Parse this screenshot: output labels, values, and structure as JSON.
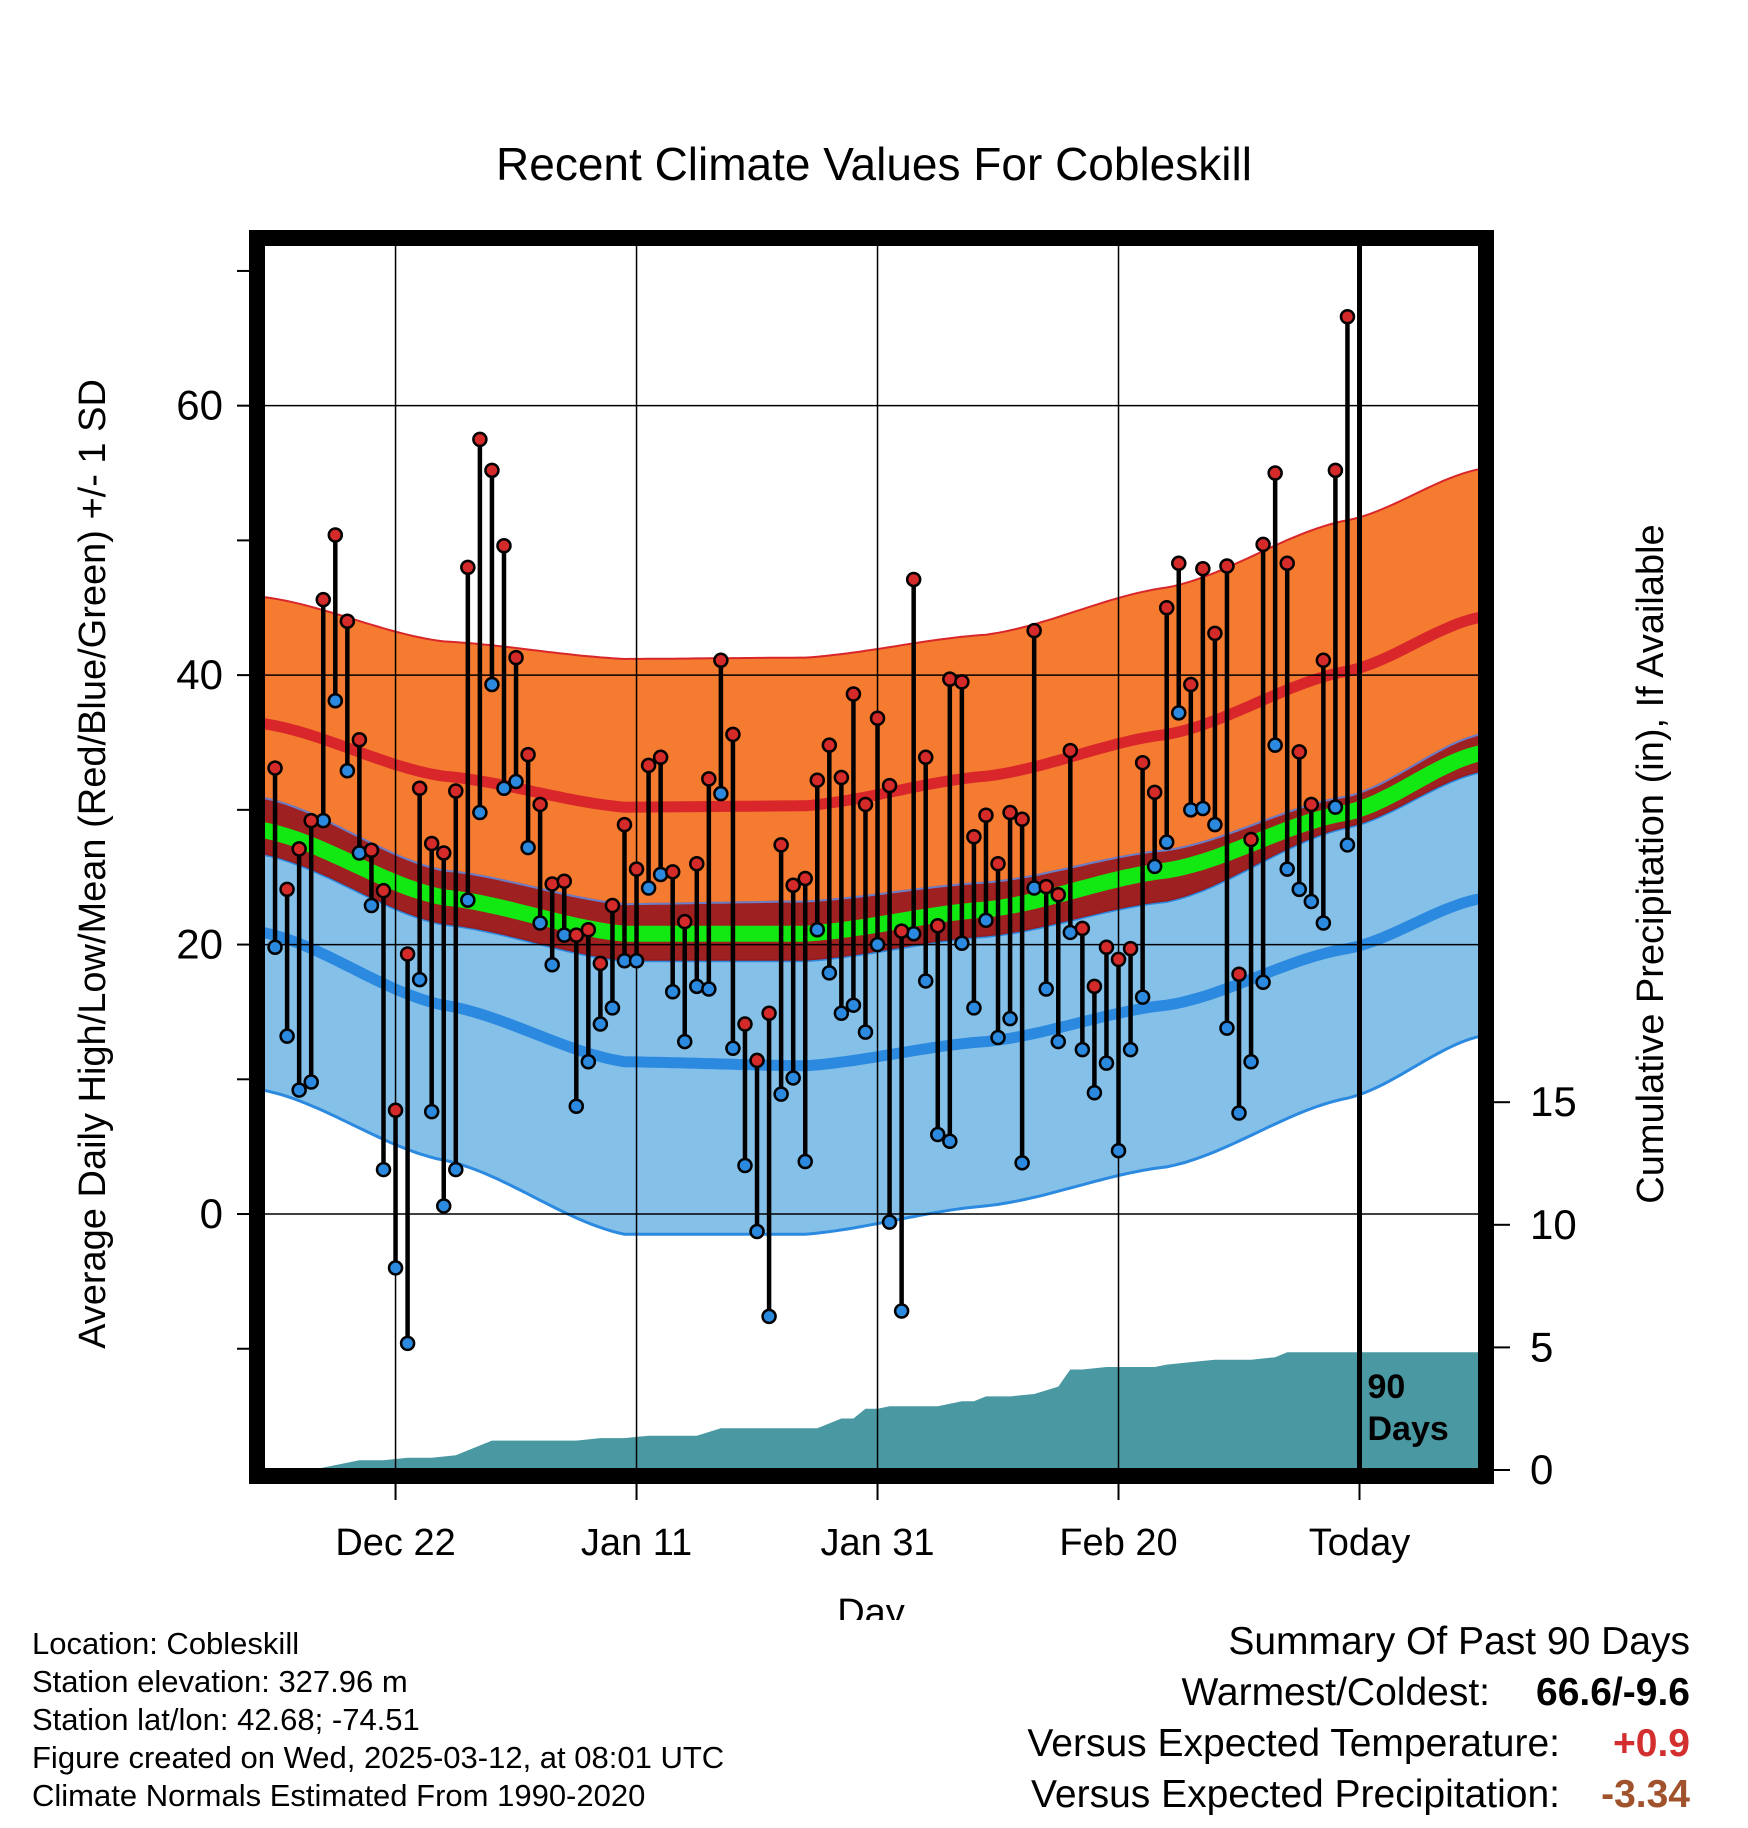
{
  "chart_data": {
    "type": "line",
    "title": "Recent Climate Values For Cobleskill",
    "xlabel": "Day",
    "ylabel": "Average Daily High/Low/Mean (Red/Blue/Green) +/- 1 SD",
    "ylabel_right": "Cumulative Precipitation (in), If Available",
    "x_ticks": [
      "Dec 22",
      "Jan 11",
      "Jan 31",
      "Feb 20",
      "Today"
    ],
    "x_ticks_day": [
      11,
      31,
      51,
      71,
      91
    ],
    "y_ticks": [
      0,
      20,
      40,
      60
    ],
    "ylim": [
      -19,
      72
    ],
    "y2_ticks": [
      0,
      5,
      10,
      15
    ],
    "y2lim": [
      0,
      50
    ],
    "day_range": [
      0,
      101
    ],
    "today_day": 91,
    "today_annotation": "90 Days",
    "grid": true,
    "normals": {
      "days": [
        0,
        15,
        30,
        45,
        60,
        75,
        90,
        101
      ],
      "high_mean": [
        36.4,
        32.5,
        30.2,
        30.3,
        32.5,
        35.6,
        40.3,
        44.3
      ],
      "high_sd_upper": [
        45.8,
        42.5,
        41.2,
        41.3,
        43.0,
        46.5,
        51.5,
        55.3
      ],
      "high_sd_lower": [
        30.9,
        25.5,
        23.0,
        23.2,
        24.6,
        27.0,
        31.0,
        35.6
      ],
      "low_mean": [
        20.9,
        15.5,
        11.3,
        11.0,
        12.8,
        15.5,
        19.7,
        23.4
      ],
      "low_sd_upper": [
        26.7,
        21.5,
        18.8,
        18.8,
        20.6,
        23.2,
        28.7,
        32.8
      ],
      "low_sd_lower": [
        9.2,
        4.0,
        -1.5,
        -1.5,
        0.6,
        3.5,
        8.6,
        13.2
      ],
      "mean": [
        28.5,
        23.5,
        20.8,
        20.8,
        22.6,
        25.5,
        29.8,
        34.2
      ]
    },
    "series": [
      {
        "name": "High",
        "color": "#d52a2a",
        "values": [
          33.1,
          24.1,
          27.1,
          29.2,
          45.6,
          50.4,
          44.0,
          35.2,
          27.0,
          24.0,
          7.7,
          19.3,
          31.6,
          27.5,
          26.8,
          31.4,
          48.0,
          57.5,
          55.2,
          49.6,
          41.3,
          34.1,
          30.4,
          24.5,
          24.7,
          20.7,
          21.1,
          18.6,
          22.9,
          28.9,
          25.6,
          33.3,
          33.9,
          25.4,
          21.7,
          26.0,
          32.3,
          41.1,
          35.6,
          14.1,
          11.4,
          14.9,
          27.4,
          24.4,
          24.9,
          32.2,
          34.8,
          32.4,
          38.6,
          30.4,
          36.8,
          31.8,
          21.0,
          47.1,
          33.9,
          21.4,
          39.7,
          39.5,
          28.0,
          29.6,
          26.0,
          29.8,
          29.3,
          43.3,
          24.3,
          23.7,
          34.4,
          21.2,
          16.9,
          19.8,
          18.9,
          19.7,
          33.5,
          31.3,
          45.0,
          48.3,
          39.3,
          47.9,
          43.1,
          48.1,
          17.8,
          27.8,
          49.7,
          55.0,
          48.3,
          34.3,
          30.4,
          41.1,
          55.2,
          66.6
        ]
      },
      {
        "name": "Low",
        "color": "#2b8ae0",
        "values": [
          19.8,
          13.2,
          9.2,
          9.8,
          29.2,
          38.1,
          32.9,
          26.8,
          22.9,
          3.3,
          -4.0,
          -9.6,
          17.4,
          7.6,
          0.6,
          3.3,
          23.3,
          29.8,
          39.3,
          31.6,
          32.1,
          27.2,
          21.6,
          18.5,
          20.7,
          8.0,
          11.3,
          14.1,
          15.3,
          18.8,
          18.8,
          24.2,
          25.2,
          16.5,
          12.8,
          16.9,
          16.7,
          31.2,
          12.3,
          3.6,
          -1.3,
          -7.6,
          8.9,
          10.1,
          3.9,
          21.1,
          17.9,
          14.9,
          15.5,
          13.5,
          20.0,
          -0.6,
          -7.2,
          20.8,
          17.3,
          5.9,
          5.4,
          20.1,
          15.3,
          21.8,
          13.1,
          14.5,
          3.8,
          24.2,
          16.7,
          12.8,
          20.9,
          12.2,
          9.0,
          11.2,
          4.7,
          12.2,
          16.1,
          25.8,
          27.6,
          37.2,
          30.0,
          30.1,
          28.9,
          13.8,
          7.5,
          11.3,
          17.2,
          34.8,
          25.6,
          24.1,
          23.2,
          21.6,
          30.2,
          27.4
        ]
      }
    ],
    "precipitation": {
      "color": "#4a99a2",
      "days": [
        0,
        4,
        6,
        8,
        10,
        12,
        14,
        16,
        17,
        19,
        20,
        22,
        24,
        26,
        28,
        30,
        32,
        34,
        36,
        38,
        40,
        42,
        44,
        46,
        48,
        49,
        50,
        51,
        52,
        54,
        56,
        58,
        59,
        60,
        61,
        62,
        64,
        66,
        67,
        68,
        70,
        72,
        74,
        75,
        77,
        79,
        82,
        84,
        85,
        87,
        89,
        91,
        92,
        95,
        101
      ],
      "values": [
        0.0,
        0.0,
        0.2,
        0.4,
        0.4,
        0.5,
        0.5,
        0.6,
        0.8,
        1.2,
        1.2,
        1.2,
        1.2,
        1.2,
        1.3,
        1.3,
        1.4,
        1.4,
        1.4,
        1.7,
        1.7,
        1.7,
        1.7,
        1.7,
        2.1,
        2.1,
        2.5,
        2.5,
        2.6,
        2.6,
        2.6,
        2.8,
        2.8,
        3.0,
        3.0,
        3.0,
        3.1,
        3.4,
        4.1,
        4.1,
        4.2,
        4.2,
        4.2,
        4.3,
        4.4,
        4.5,
        4.5,
        4.6,
        4.8,
        4.8,
        4.8,
        4.8,
        4.8,
        4.8,
        4.8
      ]
    }
  },
  "info": {
    "location": "Location: Cobleskill",
    "elevation": "Station elevation: 327.96 m",
    "latlon": "Station lat/lon: 42.68; -74.51",
    "created": "Figure created on Wed, 2025-03-12, at 08:01 UTC",
    "normals": "Climate Normals Estimated From 1990-2020"
  },
  "summary": {
    "heading": "Summary Of Past 90 Days",
    "warmest_coldest_label": "Warmest/Coldest:",
    "warmest_coldest_value": "66.6/-9.6",
    "temp_label": "Versus Expected Temperature:",
    "temp_value": "+0.9",
    "temp_color": "#d32f2f",
    "precip_label": "Versus Expected Precipitation:",
    "precip_value": "-3.34",
    "precip_color": "#a0522d"
  }
}
